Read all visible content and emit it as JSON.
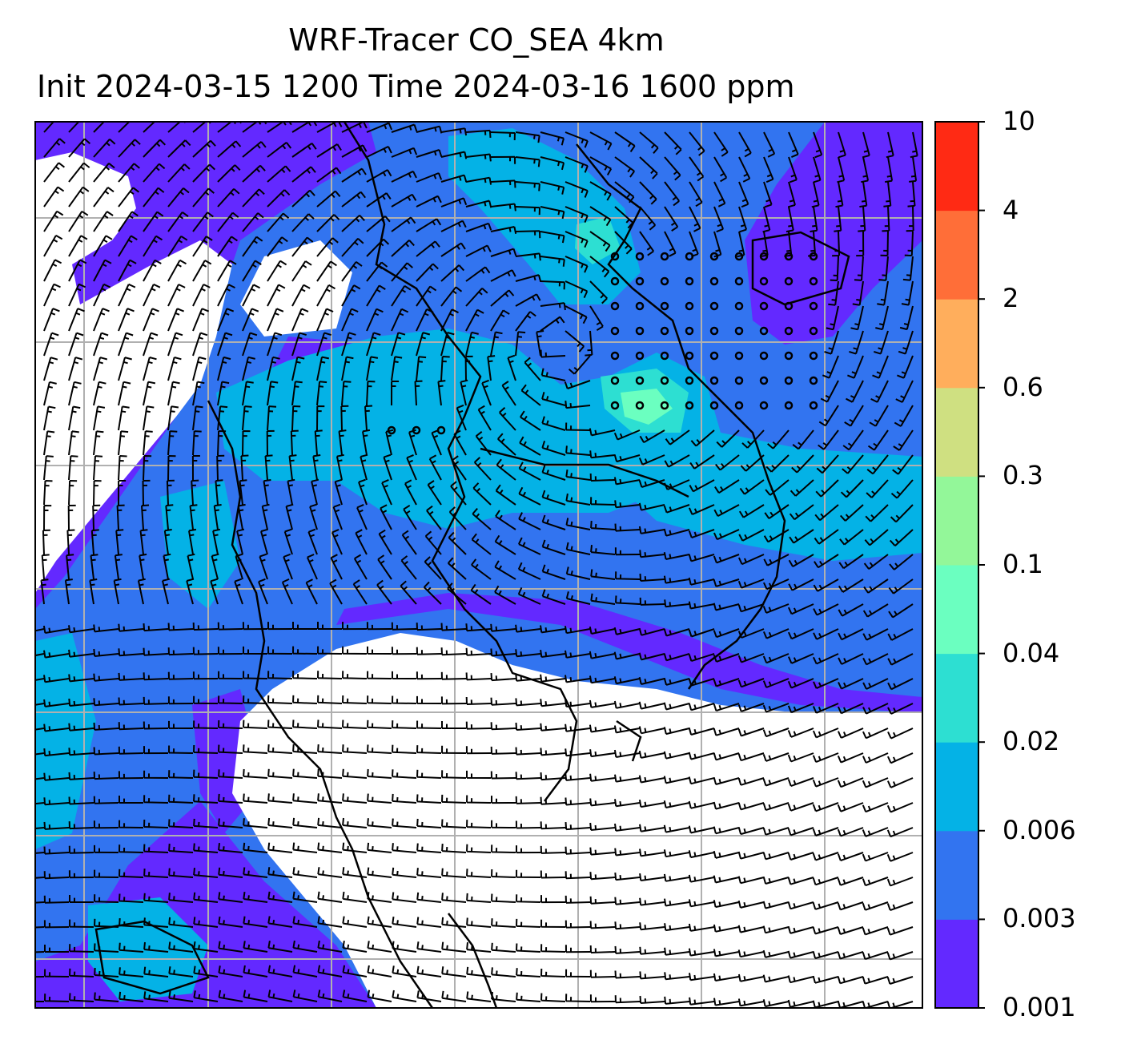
{
  "title": {
    "line1": "WRF-Tracer CO_SEA 4km",
    "line2": "Init 2024-03-15 1200 Time 2024-03-16 1600 ppm"
  },
  "colorbar": {
    "levels": [
      {
        "label": "0.001",
        "color": "#6329ff"
      },
      {
        "label": "0.003",
        "color": "#3274f0"
      },
      {
        "label": "0.006",
        "color": "#04b2e6"
      },
      {
        "label": "0.02",
        "color": "#2ddfd2"
      },
      {
        "label": "0.04",
        "color": "#6bffc0"
      },
      {
        "label": "0.1",
        "color": "#93f799"
      },
      {
        "label": "0.3",
        "color": "#cfe081"
      },
      {
        "label": "0.6",
        "color": "#ffae5c"
      },
      {
        "label": "2",
        "color": "#ff6e38"
      },
      {
        "label": "4",
        "color": "#ff2a14"
      },
      {
        "label": "10",
        "color": ""
      }
    ]
  },
  "map": {
    "no_data_color": "#ffffff",
    "barb_color": "#000000",
    "coastline_color": "#000000",
    "gridline_color": "#b0b0b0"
  }
}
